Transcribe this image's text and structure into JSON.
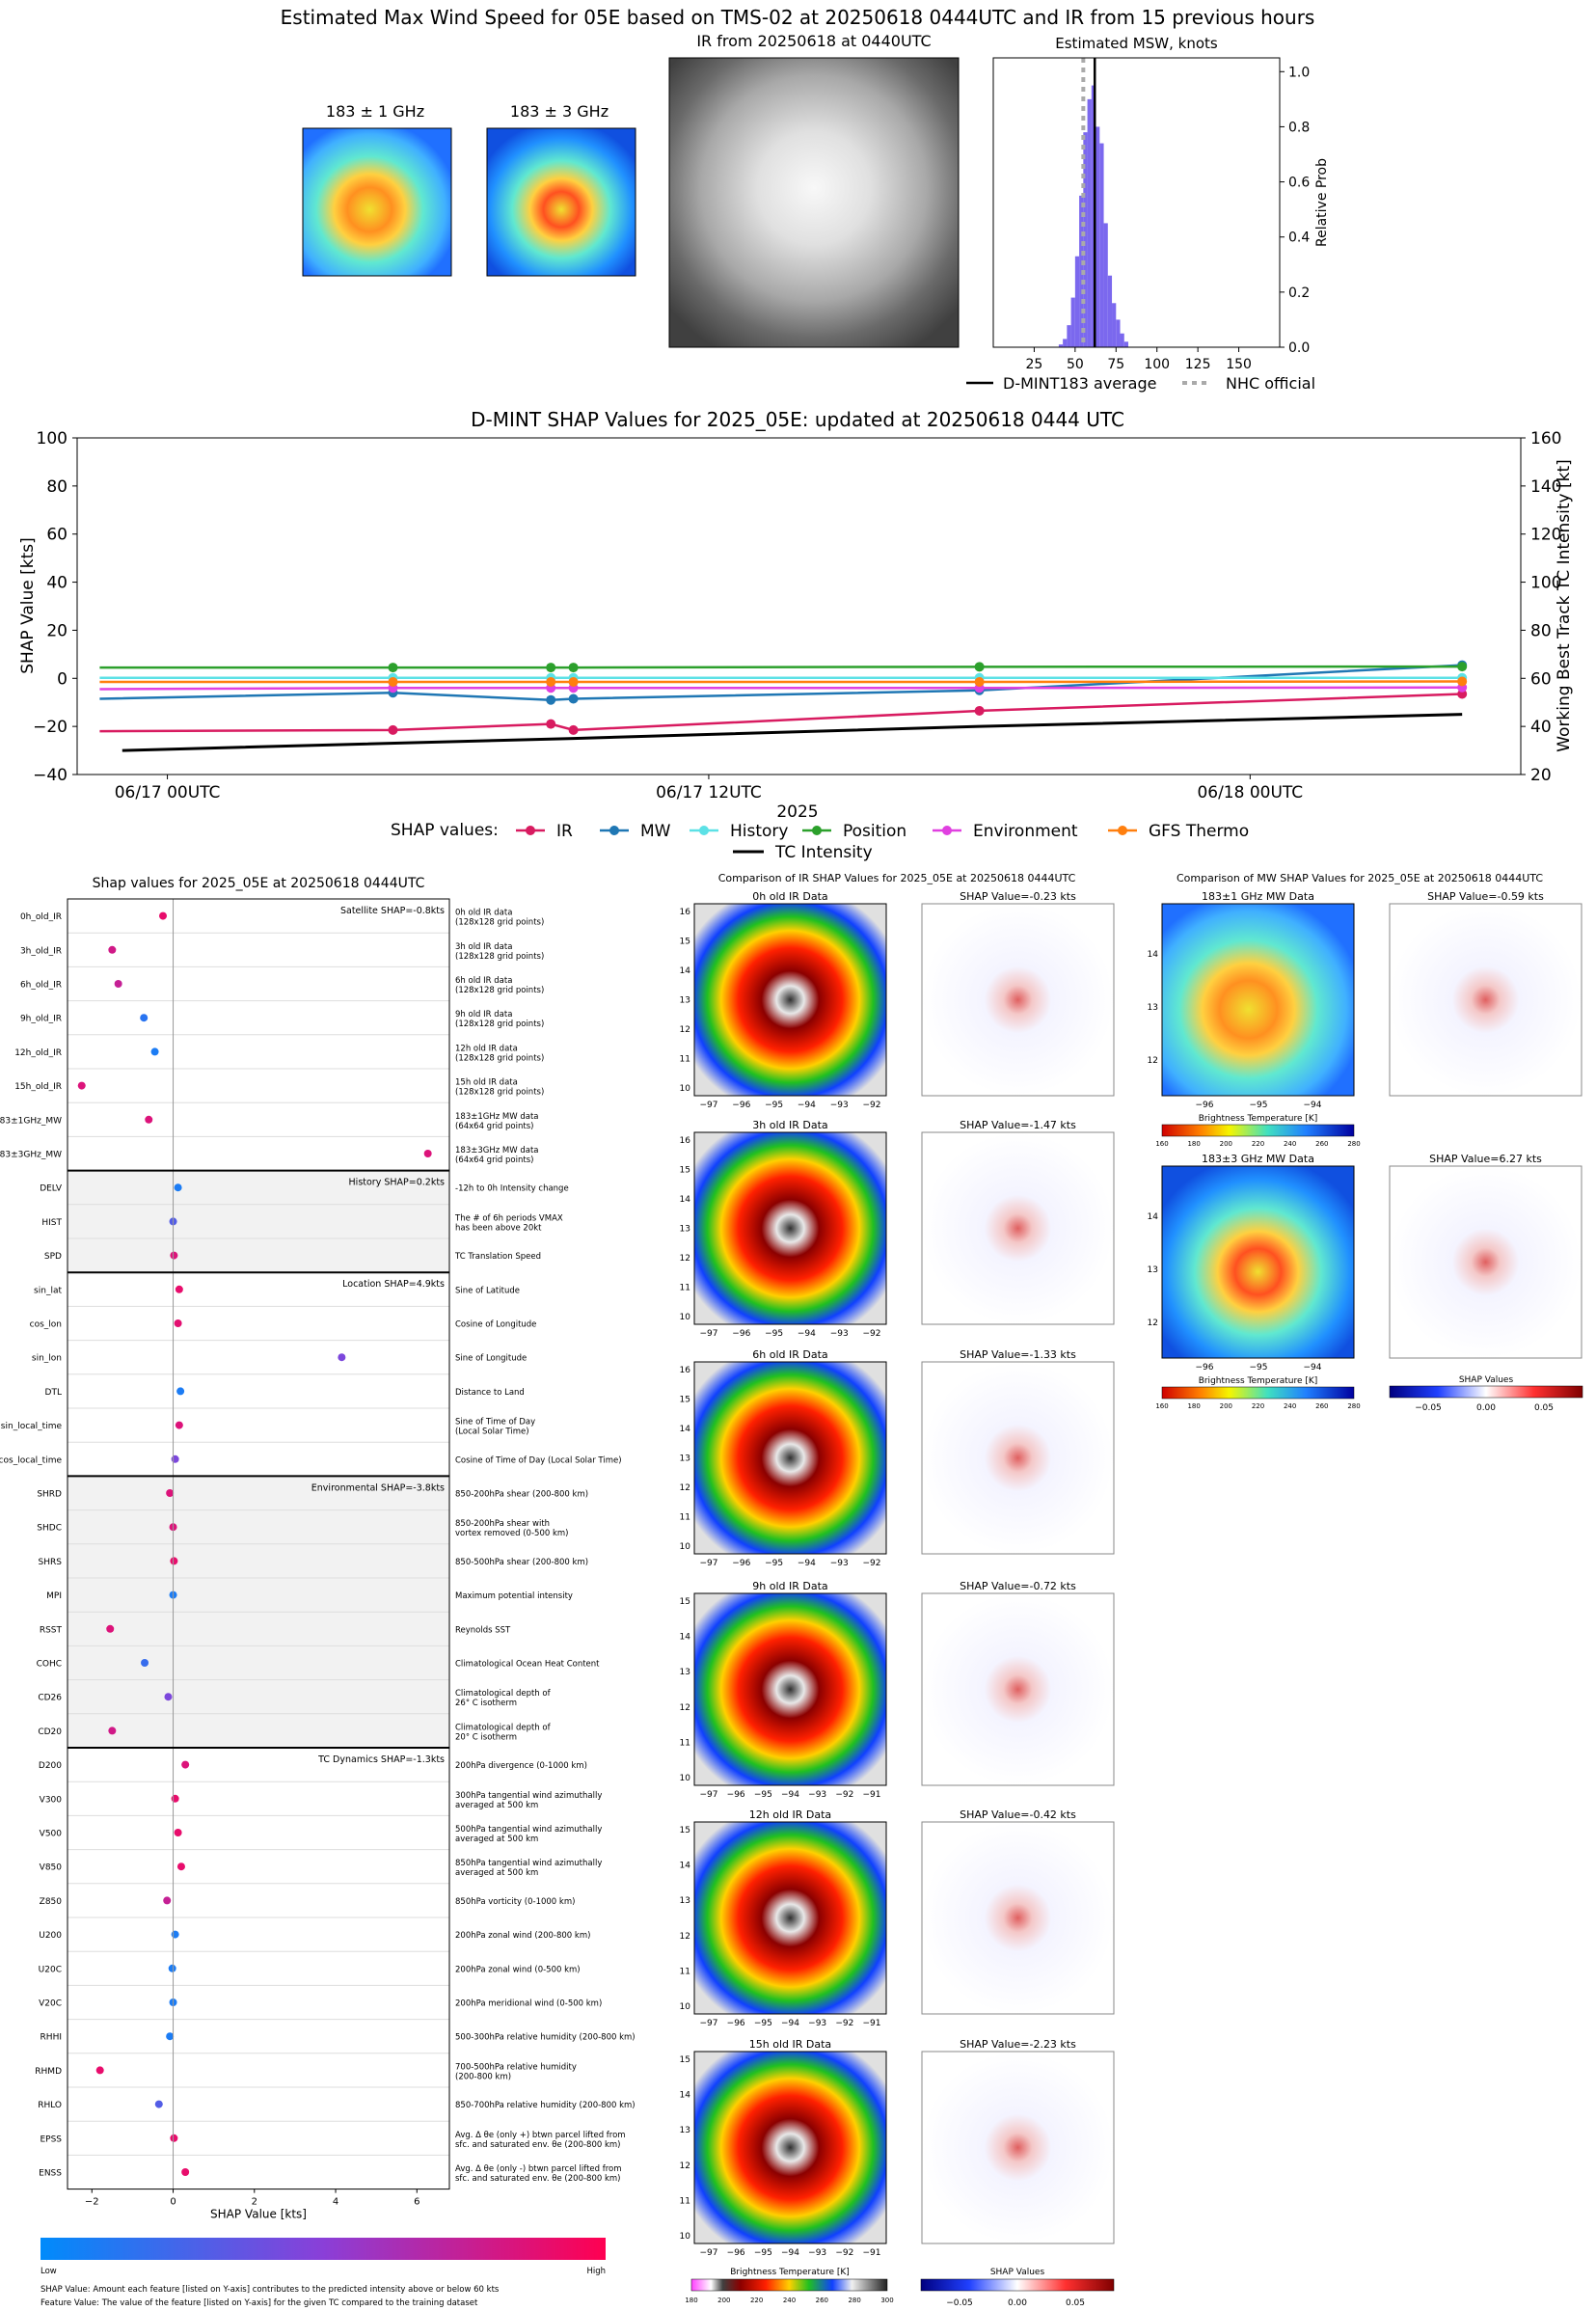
{
  "header": {
    "title": "Estimated Max Wind Speed for 05E based on TMS-02 at 20250618 0444UTC and IR from 15 previous hours",
    "mw1_title": "183 ± 1 GHz",
    "mw3_title": "183 ± 3 GHz",
    "ir_title": "IR from 20250618 at 0440UTC"
  },
  "colors": {
    "ir": "#d81b60",
    "mw": "#1f77b4",
    "history": "#5ce1e6",
    "position": "#2ca02c",
    "environment": "#e040e0",
    "gfs": "#ff7f0e",
    "intensity": "#000000",
    "hist_bar": "#7b68ee",
    "low": "#008bfb",
    "high": "#ff0051"
  },
  "chart_data": [
    {
      "type": "bar",
      "title": "Estimated MSW, knots",
      "ylabel": "Relative Prob",
      "xlim": [
        0,
        175
      ],
      "ylim": [
        0,
        1.05
      ],
      "xticks": [
        25,
        50,
        75,
        100,
        125,
        150
      ],
      "yticks": [
        "0.0",
        "0.2",
        "0.4",
        "0.6",
        "0.8",
        "1.0"
      ],
      "bin_width": 2.5,
      "bins": [
        [
          40,
          0.01
        ],
        [
          42.5,
          0.03
        ],
        [
          45,
          0.08
        ],
        [
          47.5,
          0.18
        ],
        [
          50,
          0.33
        ],
        [
          52.5,
          0.55
        ],
        [
          55,
          0.78
        ],
        [
          57.5,
          0.9
        ],
        [
          60,
          0.95
        ],
        [
          62.5,
          0.8
        ],
        [
          65,
          0.74
        ],
        [
          67.5,
          0.45
        ],
        [
          70,
          0.26
        ],
        [
          72.5,
          0.16
        ],
        [
          75,
          0.1
        ],
        [
          77.5,
          0.05
        ],
        [
          80,
          0.02
        ]
      ],
      "dmint_average": 62,
      "nhc_official": 55,
      "legend": {
        "dmint": "D-MINT183 average",
        "nhc": "NHC official"
      }
    },
    {
      "type": "line",
      "title": "D-MINT SHAP Values for 2025_05E: updated at 20250618 0444 UTC",
      "xlabel": "2025",
      "ylabel": "SHAP Value [kts]",
      "y2label": "Working Best Track TC Intensity [kt]",
      "ylim": [
        -40,
        100
      ],
      "y2lim": [
        20,
        160
      ],
      "xlim_hours": [
        -2,
        30
      ],
      "yticks": [
        "100",
        "80",
        "60",
        "40",
        "20",
        "0",
        "−20",
        "−40"
      ],
      "y2ticks": [
        "160",
        "140",
        "120",
        "100",
        "80",
        "60",
        "40",
        "20"
      ],
      "xticks": [
        {
          "label": "06/17 00UTC",
          "h": 0
        },
        {
          "label": "06/17 12UTC",
          "h": 12
        },
        {
          "label": "06/18 00UTC",
          "h": 24
        }
      ],
      "series": [
        {
          "name": "IR",
          "points": [
            [
              -1.5,
              -22
            ],
            [
              5,
              -21.5
            ],
            [
              8.5,
              -19
            ],
            [
              9,
              -21.5
            ],
            [
              18,
              -13.5
            ],
            [
              28.7,
              -6.5
            ]
          ]
        },
        {
          "name": "MW",
          "points": [
            [
              -1.5,
              -8.5
            ],
            [
              5,
              -6
            ],
            [
              8.5,
              -9
            ],
            [
              9,
              -8.5
            ],
            [
              18,
              -5
            ],
            [
              28.7,
              5.5
            ]
          ]
        },
        {
          "name": "History",
          "points": [
            [
              -1.5,
              0.2
            ],
            [
              5,
              0.2
            ],
            [
              8.5,
              0.2
            ],
            [
              9,
              0.2
            ],
            [
              18,
              0.2
            ],
            [
              28.7,
              0.2
            ]
          ]
        },
        {
          "name": "Position",
          "points": [
            [
              -1.5,
              4.5
            ],
            [
              5,
              4.5
            ],
            [
              8.5,
              4.5
            ],
            [
              9,
              4.5
            ],
            [
              18,
              4.8
            ],
            [
              28.7,
              4.9
            ]
          ]
        },
        {
          "name": "Environment",
          "points": [
            [
              -1.5,
              -4.5
            ],
            [
              5,
              -4
            ],
            [
              8.5,
              -4
            ],
            [
              9,
              -4
            ],
            [
              18,
              -4
            ],
            [
              28.7,
              -3.8
            ]
          ]
        },
        {
          "name": "GFS Thermo",
          "points": [
            [
              -1.5,
              -1.5
            ],
            [
              5,
              -1.5
            ],
            [
              8.5,
              -1.5
            ],
            [
              9,
              -1.5
            ],
            [
              18,
              -1.5
            ],
            [
              28.7,
              -1.3
            ]
          ]
        }
      ],
      "intensity": [
        [
          -1,
          30
        ],
        [
          9,
          35
        ],
        [
          18,
          40
        ],
        [
          28.7,
          45
        ]
      ],
      "legend_title": "SHAP values:",
      "legend_intensity": "TC Intensity"
    },
    {
      "type": "scatter",
      "title": "Shap values for 2025_05E at 20250618 0444UTC",
      "xlabel": "SHAP Value [kts]",
      "xlim": [
        -2.6,
        6.8
      ],
      "xticks": [
        -2,
        0,
        2,
        4,
        6
      ],
      "colorbar": {
        "low": "Low",
        "high": "High"
      },
      "footnote1": "SHAP Value: Amount each feature [listed on Y-axis] contributes to the predicted intensity above or below 60 kts",
      "footnote2": "Feature Value: The value of the feature [listed on Y-axis] for the given TC compared to the training dataset",
      "groups": [
        {
          "label": "Satellite SHAP=-0.8kts",
          "shaded": false,
          "features": [
            {
              "name": "0h_old_IR",
              "desc": [
                "0h old IR data",
                "(128x128 grid points)"
              ],
              "shap": -0.25,
              "fv": 0.9
            },
            {
              "name": "3h_old_IR",
              "desc": [
                "3h old IR data",
                "(128x128 grid points)"
              ],
              "shap": -1.5,
              "fv": 0.8
            },
            {
              "name": "6h_old_IR",
              "desc": [
                "6h old IR data",
                "(128x128 grid points)"
              ],
              "shap": -1.35,
              "fv": 0.75
            },
            {
              "name": "9h_old_IR",
              "desc": [
                "9h old IR data",
                "(128x128 grid points)"
              ],
              "shap": -0.72,
              "fv": 0.15
            },
            {
              "name": "12h_old_IR",
              "desc": [
                "12h old IR data",
                "(128x128 grid points)"
              ],
              "shap": -0.45,
              "fv": 0.1
            },
            {
              "name": "15h_old_IR",
              "desc": [
                "15h old IR data",
                "(128x128 grid points)"
              ],
              "shap": -2.25,
              "fv": 0.85
            },
            {
              "name": "183±1GHz_MW",
              "desc": [
                "183±1GHz MW data",
                "(64x64 grid points)"
              ],
              "shap": -0.6,
              "fv": 0.85
            },
            {
              "name": "183±3GHz_MW",
              "desc": [
                "183±3GHz MW data",
                "(64x64 grid points)"
              ],
              "shap": 6.27,
              "fv": 0.85
            }
          ]
        },
        {
          "label": "History SHAP=0.2kts",
          "shaded": true,
          "features": [
            {
              "name": "DELV",
              "desc": [
                "-12h to 0h Intensity change"
              ],
              "shap": 0.12,
              "fv": 0.1
            },
            {
              "name": "HIST",
              "desc": [
                "The # of 6h periods VMAX",
                "has been above 20kt"
              ],
              "shap": 0.0,
              "fv": 0.3
            },
            {
              "name": "SPD",
              "desc": [
                "TC Translation Speed"
              ],
              "shap": 0.02,
              "fv": 0.85
            }
          ]
        },
        {
          "label": "Location SHAP=4.9kts",
          "shaded": false,
          "features": [
            {
              "name": "sin_lat",
              "desc": [
                "Sine of Latitude"
              ],
              "shap": 0.15,
              "fv": 0.9
            },
            {
              "name": "cos_lon",
              "desc": [
                "Cosine of Longitude"
              ],
              "shap": 0.12,
              "fv": 0.88
            },
            {
              "name": "sin_lon",
              "desc": [
                "Sine of Longitude"
              ],
              "shap": 4.15,
              "fv": 0.45
            },
            {
              "name": "DTL",
              "desc": [
                "Distance to Land"
              ],
              "shap": 0.18,
              "fv": 0.1
            },
            {
              "name": "sin_local_time",
              "desc": [
                "Sine of Time of Day",
                "(Local Solar Time)"
              ],
              "shap": 0.15,
              "fv": 0.85
            },
            {
              "name": "cos_local_time",
              "desc": [
                "Cosine of Time of Day (Local Solar Time)"
              ],
              "shap": 0.05,
              "fv": 0.45
            }
          ]
        },
        {
          "label": "Environmental SHAP=-3.8kts",
          "shaded": true,
          "features": [
            {
              "name": "SHRD",
              "desc": [
                "850-200hPa shear (200-800 km)"
              ],
              "shap": -0.08,
              "fv": 0.85
            },
            {
              "name": "SHDC",
              "desc": [
                "850-200hPa shear with",
                "vortex removed (0-500 km)"
              ],
              "shap": 0.0,
              "fv": 0.85
            },
            {
              "name": "SHRS",
              "desc": [
                "850-500hPa shear (200-800 km)"
              ],
              "shap": 0.02,
              "fv": 0.9
            },
            {
              "name": "MPI",
              "desc": [
                "Maximum potential intensity"
              ],
              "shap": 0.0,
              "fv": 0.1
            },
            {
              "name": "RSST",
              "desc": [
                "Reynolds SST"
              ],
              "shap": -1.55,
              "fv": 0.85
            },
            {
              "name": "COHC",
              "desc": [
                "Climatological Ocean Heat Content"
              ],
              "shap": -0.7,
              "fv": 0.2
            },
            {
              "name": "CD26",
              "desc": [
                "Climatological depth of",
                "26° C isotherm"
              ],
              "shap": -0.12,
              "fv": 0.45
            },
            {
              "name": "CD20",
              "desc": [
                "Climatological depth of",
                "20° C isotherm"
              ],
              "shap": -1.5,
              "fv": 0.8
            }
          ]
        },
        {
          "label": "TC Dynamics SHAP=-1.3kts",
          "shaded": false,
          "features": [
            {
              "name": "D200",
              "desc": [
                "200hPa divergence (0-1000 km)"
              ],
              "shap": 0.3,
              "fv": 0.85
            },
            {
              "name": "V300",
              "desc": [
                "300hPa tangential wind azimuthally",
                "averaged at 500 km"
              ],
              "shap": 0.05,
              "fv": 0.9
            },
            {
              "name": "V500",
              "desc": [
                "500hPa tangential wind azimuthally",
                "averaged at 500 km"
              ],
              "shap": 0.12,
              "fv": 0.9
            },
            {
              "name": "V850",
              "desc": [
                "850hPa tangential wind azimuthally",
                "averaged at 500 km"
              ],
              "shap": 0.2,
              "fv": 0.9
            },
            {
              "name": "Z850",
              "desc": [
                "850hPa vorticity (0-1000 km)"
              ],
              "shap": -0.15,
              "fv": 0.75
            },
            {
              "name": "U200",
              "desc": [
                "200hPa zonal wind (200-800 km)"
              ],
              "shap": 0.05,
              "fv": 0.1
            },
            {
              "name": "U20C",
              "desc": [
                "200hPa zonal wind (0-500 km)"
              ],
              "shap": -0.02,
              "fv": 0.1
            },
            {
              "name": "V20C",
              "desc": [
                "200hPa meridional wind (0-500 km)"
              ],
              "shap": 0.0,
              "fv": 0.1
            },
            {
              "name": "RHHI",
              "desc": [
                "500-300hPa relative humidity (200-800 km)"
              ],
              "shap": -0.08,
              "fv": 0.1
            },
            {
              "name": "RHMD",
              "desc": [
                "700-500hPa relative humidity",
                "(200-800 km)"
              ],
              "shap": -1.8,
              "fv": 0.9
            },
            {
              "name": "RHLO",
              "desc": [
                "850-700hPa relative humidity (200-800 km)"
              ],
              "shap": -0.35,
              "fv": 0.3
            },
            {
              "name": "EPSS",
              "desc": [
                "Avg. Δ θe (only +) btwn parcel lifted from",
                "sfc. and saturated env. θe (200-800 km)"
              ],
              "shap": 0.02,
              "fv": 0.9
            },
            {
              "name": "ENSS",
              "desc": [
                "Avg. Δ θe (only -) btwn parcel lifted from",
                "sfc. and saturated env. θe (200-800 km)"
              ],
              "shap": 0.3,
              "fv": 0.9
            }
          ]
        }
      ]
    }
  ],
  "ir_comparison": {
    "title": "Comparison of IR SHAP Values for 2025_05E at 20250618 0444UTC",
    "rows": [
      {
        "label": "0h old IR Data",
        "shap": "SHAP Value=-0.23 kts",
        "xticks": [
          "−97",
          "−96",
          "−95",
          "−94",
          "−93",
          "−92"
        ],
        "yticks": [
          "16",
          "15",
          "14",
          "13",
          "12",
          "11",
          "10"
        ]
      },
      {
        "label": "3h old IR Data",
        "shap": "SHAP Value=-1.47 kts",
        "xticks": [
          "−97",
          "−96",
          "−95",
          "−94",
          "−93",
          "−92"
        ],
        "yticks": [
          "16",
          "15",
          "14",
          "13",
          "12",
          "11",
          "10"
        ]
      },
      {
        "label": "6h old IR Data",
        "shap": "SHAP Value=-1.33 kts",
        "xticks": [
          "−97",
          "−96",
          "−95",
          "−94",
          "−93",
          "−92"
        ],
        "yticks": [
          "16",
          "15",
          "14",
          "13",
          "12",
          "11",
          "10"
        ]
      },
      {
        "label": "9h old IR Data",
        "shap": "SHAP Value=-0.72 kts",
        "xticks": [
          "−97",
          "−96",
          "−95",
          "−94",
          "−93",
          "−92",
          "−91"
        ],
        "yticks": [
          "15",
          "14",
          "13",
          "12",
          "11",
          "10"
        ]
      },
      {
        "label": "12h old IR Data",
        "shap": "SHAP Value=-0.42 kts",
        "xticks": [
          "−97",
          "−96",
          "−95",
          "−94",
          "−93",
          "−92",
          "−91"
        ],
        "yticks": [
          "15",
          "14",
          "13",
          "12",
          "11",
          "10"
        ]
      },
      {
        "label": "15h old IR Data",
        "shap": "SHAP Value=-2.23 kts",
        "xticks": [
          "−97",
          "−96",
          "−95",
          "−94",
          "−93",
          "−92",
          "−91"
        ],
        "yticks": [
          "15",
          "14",
          "13",
          "12",
          "11",
          "10"
        ]
      }
    ],
    "bt_label": "Brightness Temperature [K]",
    "bt_ticks": [
      "180",
      "200",
      "220",
      "240",
      "260",
      "280",
      "300"
    ],
    "shap_label": "SHAP Values",
    "shap_ticks": [
      "−0.05",
      "0.00",
      "0.05"
    ]
  },
  "mw_comparison": {
    "title": "Comparison of MW SHAP Values for 2025_05E at 20250618 0444UTC",
    "rows": [
      {
        "label": "183±1 GHz MW Data",
        "shap": "SHAP Value=-0.59 kts"
      },
      {
        "label": "183±3 GHz MW Data",
        "shap": "SHAP Value=6.27 kts"
      }
    ],
    "xticks": [
      "−96",
      "−95",
      "−94"
    ],
    "yticks": [
      "14",
      "13",
      "12"
    ],
    "bt_label": "Brightness Temperature [K]",
    "bt_ticks": [
      "160",
      "180",
      "200",
      "220",
      "240",
      "260",
      "280"
    ],
    "shap_label": "SHAP Values",
    "shap_ticks": [
      "−0.05",
      "0.00",
      "0.05"
    ]
  }
}
